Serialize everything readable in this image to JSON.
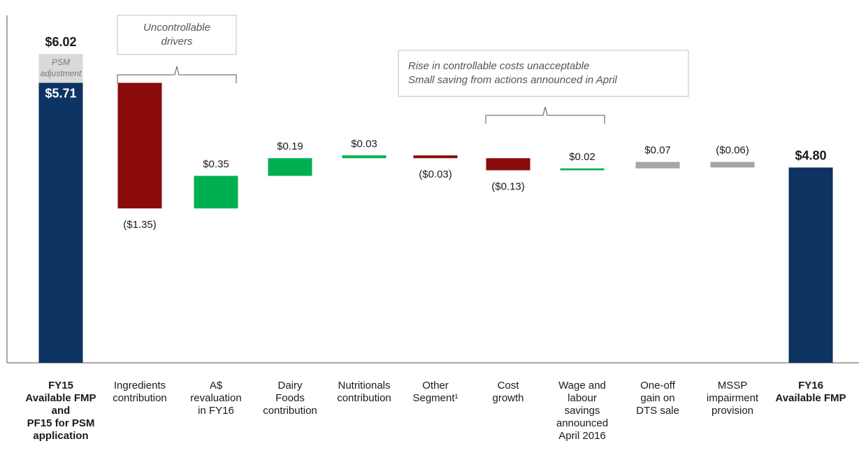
{
  "chart_data": {
    "type": "waterfall",
    "categories": [
      [
        "FY15",
        "Available FMP",
        "and",
        "PF15 for PSM",
        "application"
      ],
      [
        "Ingredients",
        "contribution"
      ],
      [
        "A$",
        "revaluation",
        "in FY16"
      ],
      [
        "Dairy",
        "Foods",
        "contribution"
      ],
      [
        "Nutritionals",
        "contribution"
      ],
      [
        "Other",
        "Segment¹"
      ],
      [
        "Cost",
        "growth"
      ],
      [
        "Wage and",
        "labour",
        "savings",
        "announced",
        "April 2016"
      ],
      [
        "One-off",
        "gain on",
        "DTS sale"
      ],
      [
        "MSSP",
        "impairment",
        "provision"
      ],
      [
        "FY16",
        "Available FMP"
      ]
    ],
    "measures": [
      "total",
      "relative",
      "relative",
      "relative",
      "relative",
      "relative",
      "relative",
      "relative",
      "relative",
      "relative",
      "total"
    ],
    "values": [
      5.71,
      -1.35,
      0.35,
      0.19,
      0.03,
      -0.03,
      -0.13,
      0.02,
      0.07,
      -0.06,
      4.8
    ],
    "value_labels": [
      "$5.71",
      "($1.35)",
      "$0.35",
      "$0.19",
      "$0.03",
      "($0.03)",
      "($0.13)",
      "$0.02",
      "$0.07",
      "($0.06)",
      "$4.80"
    ],
    "colors": [
      "#0d3363",
      "#8b0a0a",
      "#00b050",
      "#00b050",
      "#00b050",
      "#8b0a0a",
      "#8b0a0a",
      "#00b050",
      "#a6a6a6",
      "#a6a6a6",
      "#0d3363"
    ],
    "adjustment": {
      "label": [
        "PSM",
        "adjustment"
      ],
      "value": 0.31,
      "color": "#d9d9d9",
      "total": {
        "value": 6.02,
        "label": "$6.02"
      }
    },
    "annotations": [
      {
        "text": [
          "Uncontrollable",
          "drivers"
        ]
      },
      {
        "text": [
          "Rise in controllable costs unacceptable",
          "Small saving from actions announced in April"
        ]
      }
    ],
    "ylim": [
      2.7,
      6.3
    ]
  }
}
